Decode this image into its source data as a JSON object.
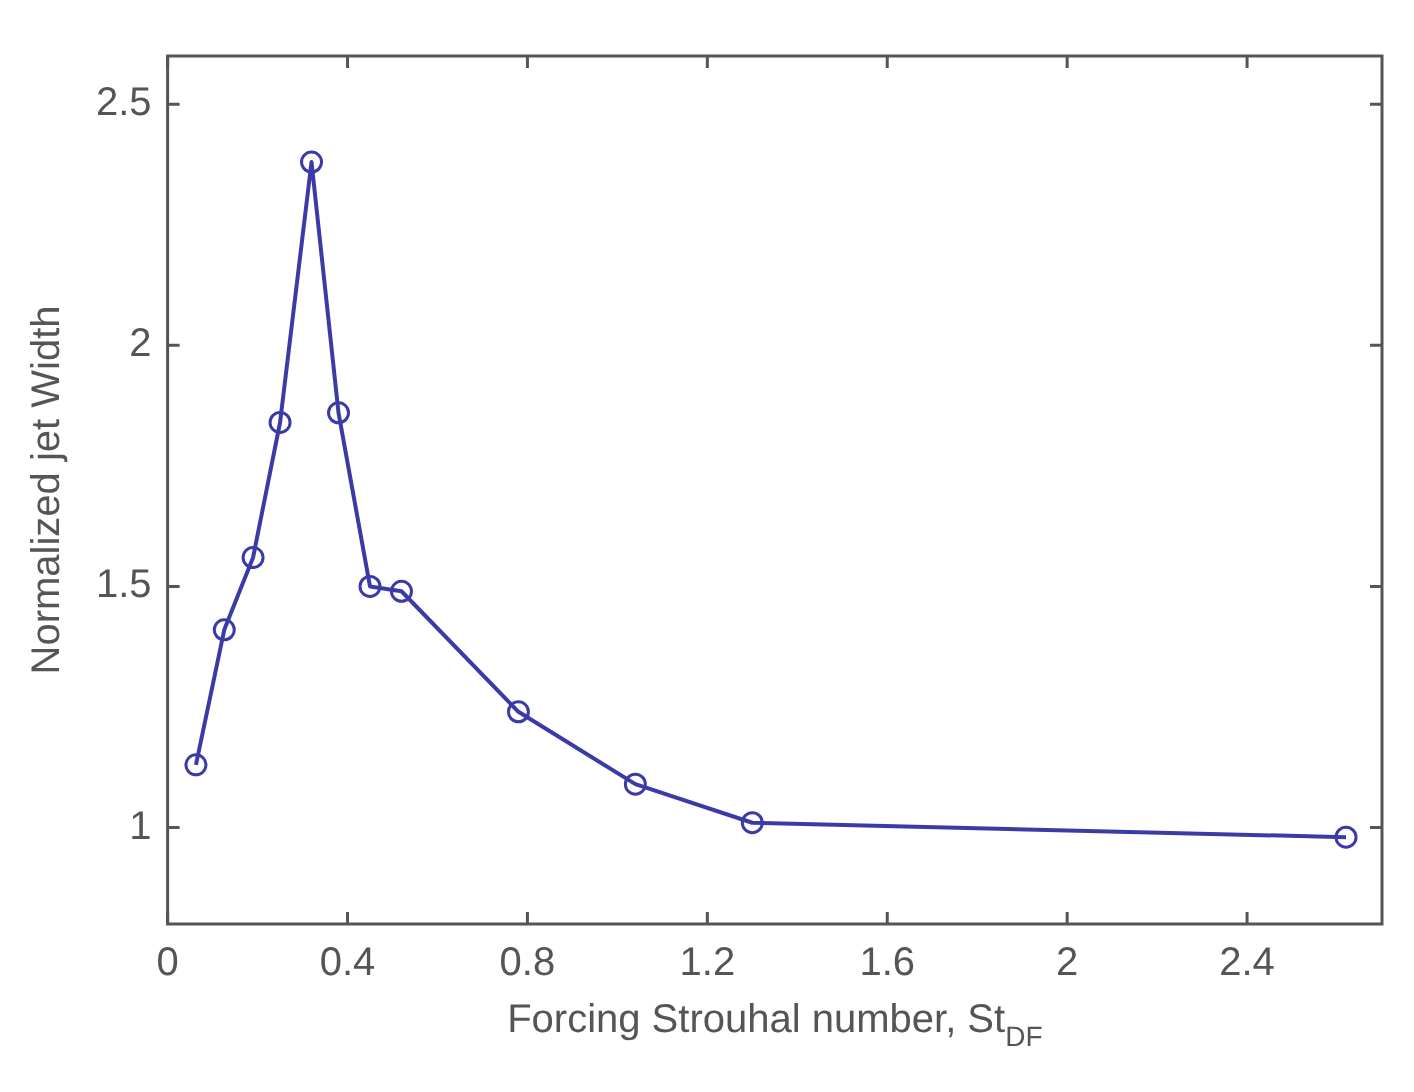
{
  "chart_data": {
    "type": "line",
    "xlabel": "Forcing Strouhal number, St$_{DF}$",
    "ylabel": "Normalized jet Width",
    "x": [
      0.063,
      0.126,
      0.19,
      0.25,
      0.32,
      0.38,
      0.45,
      0.52,
      0.78,
      1.04,
      1.3,
      2.62
    ],
    "series": [
      {
        "color": "#3b3ba8",
        "values": [
          1.13,
          1.41,
          1.56,
          1.84,
          2.38,
          1.86,
          1.5,
          1.49,
          1.24,
          1.09,
          1.01,
          0.98
        ]
      }
    ],
    "xlim": [
      0,
      2.7
    ],
    "xticks": [
      0,
      0.4,
      0.8,
      1.2,
      1.6,
      2,
      2.4
    ],
    "ylim": [
      0.8,
      2.6
    ],
    "yticks": [
      1,
      1.5,
      2,
      2.5
    ],
    "grid": false,
    "legend": false,
    "marker": "circle",
    "line_style": "solid"
  }
}
